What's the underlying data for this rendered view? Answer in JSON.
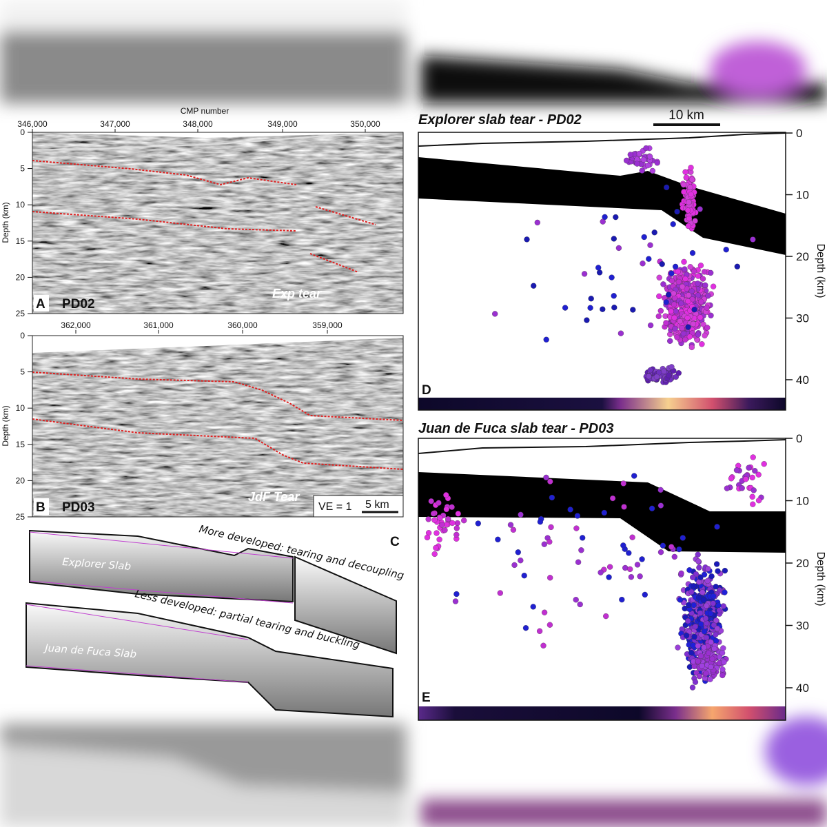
{
  "panels": [
    {
      "label": "A",
      "name": "PD02",
      "annotation": "Exp tear",
      "top_axis_title": "CMP number",
      "top_ticks": [
        "346,000",
        "347,000",
        "348,000",
        "349,000",
        "350,000"
      ],
      "depth_axis_title": "Depth (km)",
      "depth_ticks": [
        "0",
        "5",
        "10",
        "15",
        "20",
        "25"
      ]
    },
    {
      "label": "B",
      "name": "PD03",
      "annotation": "JdF Tear",
      "top_ticks": [
        "362,000",
        "361,000",
        "360,000",
        "359,000"
      ],
      "depth_axis_title": "Depth (km)",
      "depth_ticks": [
        "0",
        "5",
        "10",
        "15",
        "20",
        "25"
      ],
      "vertical_exaggeration": "VE = 1",
      "scale_bar": "5 km"
    },
    {
      "label": "C",
      "captions": [
        "More developed: tearing and decoupling",
        "Less developed: partial tearing and buckling"
      ],
      "slabs": [
        "Explorer Slab",
        "Juan de Fuca Slab"
      ]
    },
    {
      "label": "D",
      "title": "Explorer slab tear - PD02",
      "scale_bar": "10 km",
      "depth_axis_title": "Depth (km)",
      "depth_ticks": [
        "0",
        "10",
        "20",
        "30",
        "40"
      ]
    },
    {
      "label": "E",
      "title": "Juan de Fuca slab tear - PD03",
      "depth_axis_title": "Depth (km)",
      "depth_ticks": [
        "0",
        "10",
        "20",
        "30",
        "40"
      ]
    }
  ]
}
